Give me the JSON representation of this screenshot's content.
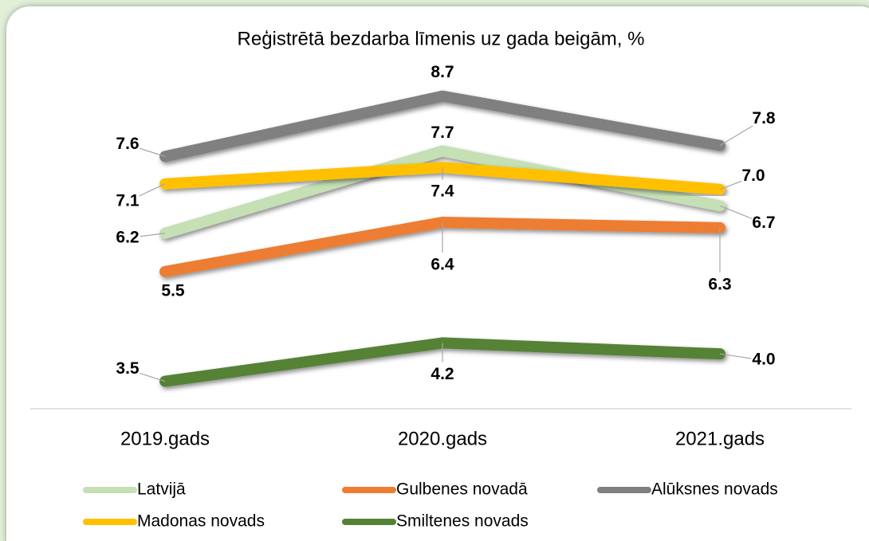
{
  "chart_data": {
    "type": "line",
    "title": "Reģistrētā bezdarba līmenis uz gada beigām, %",
    "categories": [
      "2019.gads",
      "2020.gads",
      "2021.gads"
    ],
    "series": [
      {
        "name": "Latvijā",
        "color": "#c5e0b4",
        "values": [
          6.2,
          7.7,
          6.7
        ],
        "value_labels": [
          "6.2",
          "7.7",
          "6.7"
        ]
      },
      {
        "name": "Gulbenes novadā",
        "color": "#ed7d31",
        "values": [
          5.5,
          6.4,
          6.3
        ],
        "value_labels": [
          "5.5",
          "6.4",
          "6.3"
        ]
      },
      {
        "name": "Alūksnes novads",
        "color": "#808080",
        "values": [
          7.6,
          8.7,
          7.8
        ],
        "value_labels": [
          "7.6",
          "8.7",
          "7.8"
        ]
      },
      {
        "name": "Madonas novads",
        "color": "#ffc000",
        "values": [
          7.1,
          7.4,
          7.0
        ],
        "value_labels": [
          "7.1",
          "7.4",
          "7.0"
        ]
      },
      {
        "name": "Smiltenes novads",
        "color": "#548235",
        "values": [
          3.5,
          4.2,
          4.0
        ],
        "value_labels": [
          "3.5",
          "4.2",
          "4.0"
        ]
      }
    ],
    "ylim": [
      3,
      9
    ],
    "legend": "bottom"
  }
}
